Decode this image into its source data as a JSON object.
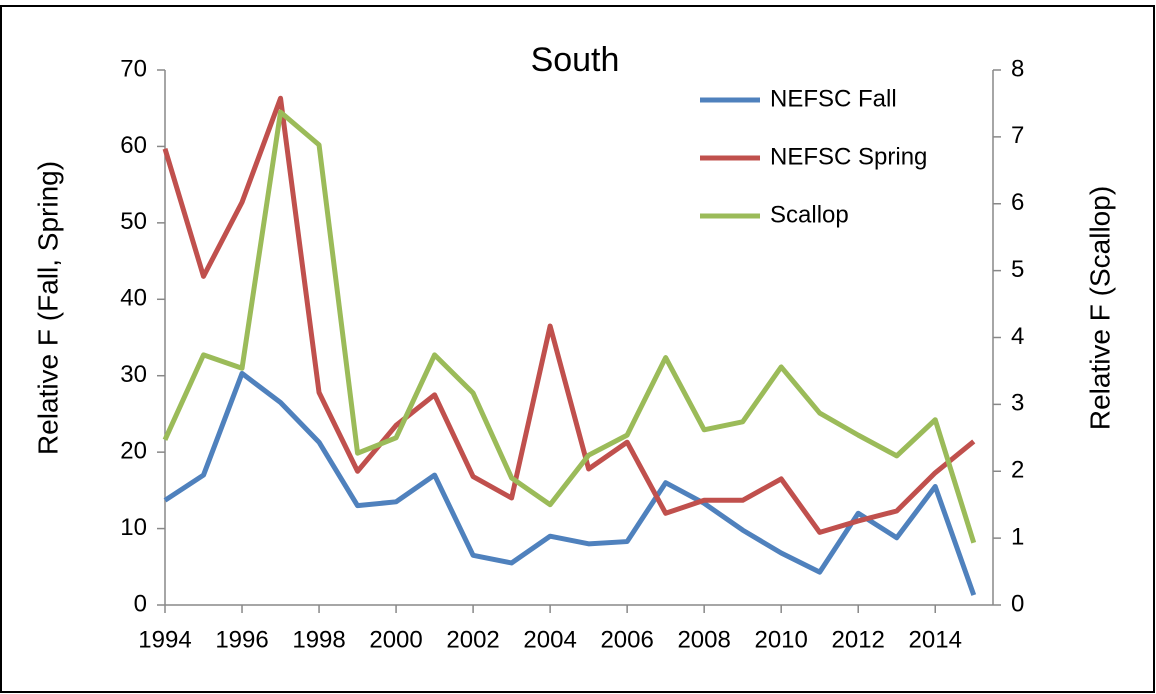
{
  "chart_data": {
    "type": "line",
    "title": "South",
    "y_label": "Relative F (Fall, Spring)",
    "y2_label": "Relative F (Scallop)",
    "x": [
      1994,
      1995,
      1996,
      1997,
      1998,
      1999,
      2000,
      2001,
      2002,
      2003,
      2004,
      2005,
      2006,
      2007,
      2008,
      2009,
      2010,
      2011,
      2012,
      2013,
      2014,
      2015
    ],
    "xlim": [
      1994,
      2015.5
    ],
    "xticks": [
      1994,
      1996,
      1998,
      2000,
      2002,
      2004,
      2006,
      2008,
      2010,
      2012,
      2014
    ],
    "ylim": [
      0,
      70
    ],
    "yticks": [
      0,
      10,
      20,
      30,
      40,
      50,
      60,
      70
    ],
    "y2lim": [
      0,
      8
    ],
    "y2ticks": [
      0,
      1,
      2,
      3,
      4,
      5,
      6,
      7,
      8
    ],
    "legend": "top-right",
    "series": [
      {
        "name": "NEFSC Fall",
        "color": "#4f81bd",
        "values": [
          13.7,
          17,
          30.3,
          26.5,
          21.3,
          13,
          13.5,
          17,
          6.5,
          5.5,
          9,
          8,
          8.3,
          16,
          13.3,
          9.8,
          6.8,
          4.3,
          12,
          8.8,
          15.5,
          1.3
        ]
      },
      {
        "name": "NEFSC Spring",
        "color": "#c0504d",
        "values": [
          59.7,
          43,
          52.7,
          66.3,
          27.8,
          17.5,
          23.5,
          27.5,
          16.8,
          14,
          36.5,
          17.8,
          21.3,
          12,
          13.7,
          13.7,
          16.5,
          9.5,
          11,
          12.3,
          17.3,
          21.4
        ]
      },
      {
        "name": "Scallop",
        "color": "#9bbb59",
        "axis": "y2",
        "values": [
          2.47,
          3.74,
          3.54,
          7.37,
          6.88,
          2.27,
          2.5,
          3.74,
          3.17,
          1.9,
          1.5,
          2.24,
          2.54,
          3.7,
          2.62,
          2.74,
          3.56,
          2.87,
          2.54,
          2.23,
          2.77,
          0.93
        ]
      }
    ]
  }
}
